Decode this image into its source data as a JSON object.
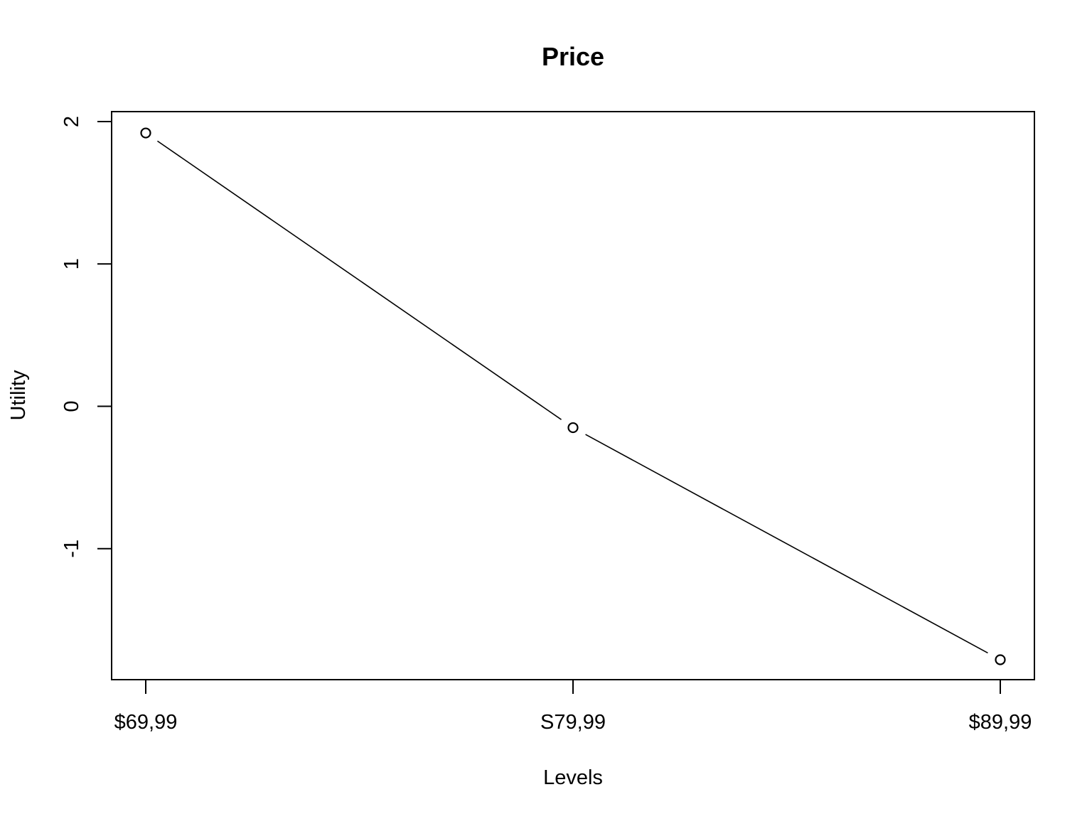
{
  "chart_data": {
    "type": "line",
    "title": "Price",
    "xlabel": "Levels",
    "ylabel": "Utility",
    "categories": [
      "$69,99",
      "S79,99",
      "$89,99"
    ],
    "series": [
      {
        "values": [
          1.92,
          -0.15,
          -1.78
        ]
      }
    ],
    "yticks": [
      -1,
      0,
      1,
      2
    ],
    "ytick_labels": [
      "-1",
      "0",
      "1",
      "2"
    ],
    "ylim": [
      -1.92,
      2.07
    ],
    "grid": false,
    "legend": "none",
    "marker": "open-circle",
    "colors": {
      "line": "#000000",
      "marker_fill": "#ffffff",
      "background": "#ffffff"
    }
  }
}
